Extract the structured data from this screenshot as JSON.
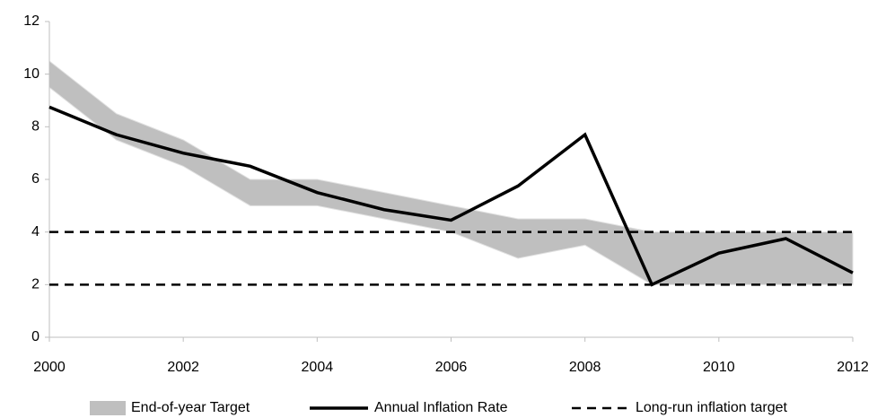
{
  "chart_data": {
    "type": "line",
    "x": [
      2000,
      2001,
      2002,
      2003,
      2004,
      2005,
      2006,
      2007,
      2008,
      2009,
      2010,
      2011,
      2012
    ],
    "xlim": [
      2000,
      2012
    ],
    "xticks": [
      2000,
      2002,
      2004,
      2006,
      2008,
      2010,
      2012
    ],
    "ylim": [
      0,
      12
    ],
    "yticks": [
      0,
      2,
      4,
      6,
      8,
      10,
      12
    ],
    "grid": false,
    "legend": "bottom",
    "band": {
      "name": "End-of-year Target",
      "color": "#bfbfbf",
      "lower": [
        9.5,
        7.5,
        6.5,
        5,
        5,
        4.5,
        4,
        3,
        3.5,
        2,
        2,
        2,
        2
      ],
      "upper": [
        10.5,
        8.5,
        7.5,
        6,
        6,
        5.5,
        5,
        4.5,
        4.5,
        4,
        4,
        4,
        4
      ]
    },
    "series": [
      {
        "name": "Annual Inflation Rate",
        "color": "#000000",
        "values": [
          8.75,
          7.7,
          7.0,
          6.5,
          5.5,
          4.85,
          4.45,
          5.75,
          7.7,
          2.0,
          3.2,
          3.75,
          2.45
        ]
      }
    ],
    "reference_lines": {
      "name": "Long-run inflation target",
      "color": "#000000",
      "values": [
        2,
        4
      ]
    }
  }
}
